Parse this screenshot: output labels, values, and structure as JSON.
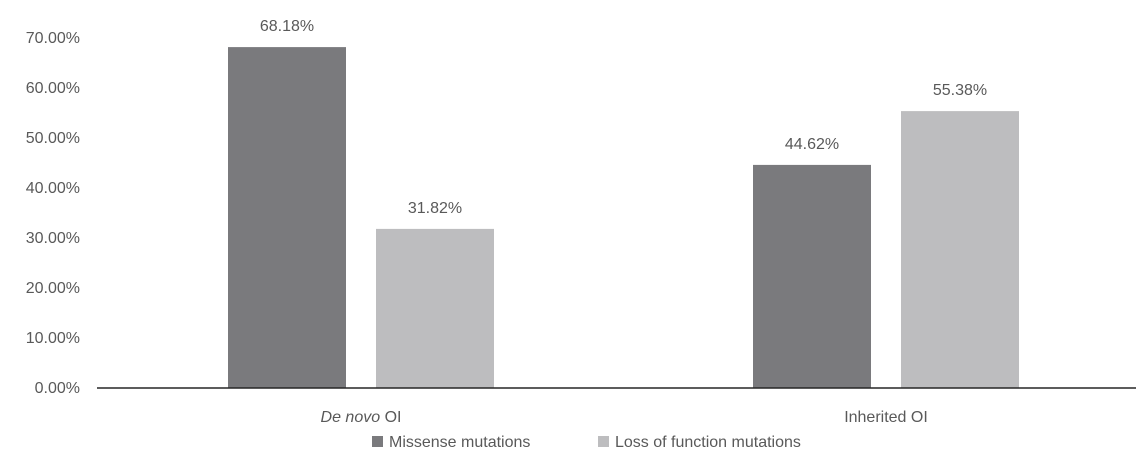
{
  "chart_data": {
    "type": "bar",
    "categories": [
      {
        "label": "OI",
        "label_prefix_italic": "De novo"
      },
      {
        "label": "Inherited OI",
        "label_prefix_italic": ""
      }
    ],
    "series": [
      {
        "name": "Missense mutations",
        "values": [
          68.18,
          44.62
        ],
        "color": "#7a7a7d"
      },
      {
        "name": "Loss of function mutations",
        "values": [
          31.82,
          55.38
        ],
        "color": "#bdbdbf"
      }
    ],
    "data_labels": [
      [
        "68.18%",
        "44.62%"
      ],
      [
        "31.82%",
        "55.38%"
      ]
    ],
    "y_ticks": [
      "0.00%",
      "10.00%",
      "20.00%",
      "30.00%",
      "40.00%",
      "50.00%",
      "60.00%",
      "70.00%"
    ],
    "ylim": [
      0,
      70
    ],
    "grid": false,
    "legend_position": "bottom",
    "title": "",
    "xlabel": "",
    "ylabel": ""
  }
}
